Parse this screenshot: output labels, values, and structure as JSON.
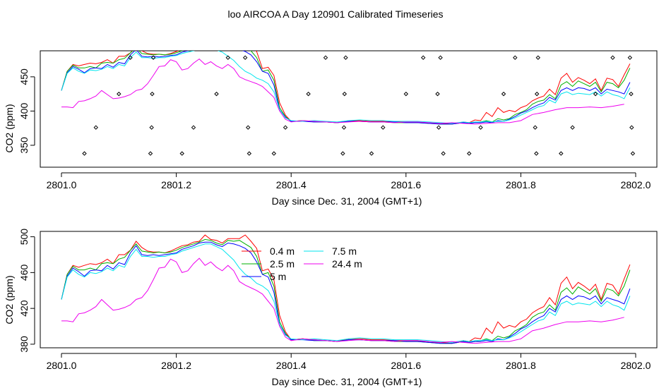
{
  "title": "loo AIRCOA A  Day 120901  Calibrated Timeseries",
  "colors": {
    "0.4 m": "#ff0000",
    "2.5 m": "#00b000",
    "5 m": "#0000ff",
    "7.5 m": "#00e5ee",
    "24.4 m": "#ee00ee"
  },
  "chart_data": [
    {
      "type": "line",
      "xlabel": "Day since Dec. 31, 2004 (GMT+1)",
      "ylabel": "CO2 (ppm)",
      "xlim": [
        2801.0,
        2802.0
      ],
      "ylim": [
        318,
        488
      ],
      "xticks": [
        "2801.0",
        "2801.2",
        "2801.4",
        "2801.6",
        "2801.8",
        "2802.0"
      ],
      "yticks": [
        "350",
        "400",
        "450"
      ],
      "ytick_values": [
        350,
        400,
        450
      ],
      "markers": [
        {
          "x": 2801.04,
          "y": 338
        },
        {
          "x": 2801.06,
          "y": 376
        },
        {
          "x": 2801.1,
          "y": 425
        },
        {
          "x": 2801.12,
          "y": 478
        },
        {
          "x": 2801.155,
          "y": 338
        },
        {
          "x": 2801.157,
          "y": 376
        },
        {
          "x": 2801.158,
          "y": 425
        },
        {
          "x": 2801.16,
          "y": 478
        },
        {
          "x": 2801.21,
          "y": 338
        },
        {
          "x": 2801.23,
          "y": 376
        },
        {
          "x": 2801.27,
          "y": 425
        },
        {
          "x": 2801.29,
          "y": 478
        },
        {
          "x": 2801.32,
          "y": 478
        },
        {
          "x": 2801.325,
          "y": 376
        },
        {
          "x": 2801.327,
          "y": 338
        },
        {
          "x": 2801.37,
          "y": 338
        },
        {
          "x": 2801.39,
          "y": 376
        },
        {
          "x": 2801.43,
          "y": 425
        },
        {
          "x": 2801.46,
          "y": 478
        },
        {
          "x": 2801.49,
          "y": 338
        },
        {
          "x": 2801.492,
          "y": 376
        },
        {
          "x": 2801.493,
          "y": 425
        },
        {
          "x": 2801.495,
          "y": 478
        },
        {
          "x": 2801.54,
          "y": 338
        },
        {
          "x": 2801.56,
          "y": 376
        },
        {
          "x": 2801.6,
          "y": 425
        },
        {
          "x": 2801.63,
          "y": 478
        },
        {
          "x": 2801.655,
          "y": 425
        },
        {
          "x": 2801.657,
          "y": 376
        },
        {
          "x": 2801.66,
          "y": 478
        },
        {
          "x": 2801.665,
          "y": 338
        },
        {
          "x": 2801.71,
          "y": 338
        },
        {
          "x": 2801.73,
          "y": 376
        },
        {
          "x": 2801.77,
          "y": 425
        },
        {
          "x": 2801.79,
          "y": 478
        },
        {
          "x": 2801.825,
          "y": 376
        },
        {
          "x": 2801.827,
          "y": 338
        },
        {
          "x": 2801.828,
          "y": 425
        },
        {
          "x": 2801.83,
          "y": 478
        },
        {
          "x": 2801.87,
          "y": 338
        },
        {
          "x": 2801.89,
          "y": 376
        },
        {
          "x": 2801.93,
          "y": 425
        },
        {
          "x": 2801.96,
          "y": 478
        },
        {
          "x": 2801.99,
          "y": 478
        },
        {
          "x": 2801.992,
          "y": 425
        },
        {
          "x": 2801.993,
          "y": 376
        },
        {
          "x": 2801.995,
          "y": 338
        }
      ]
    },
    {
      "type": "line",
      "xlabel": "Day since Dec. 31, 2004 (GMT+1)",
      "ylabel": "CO2 (ppm)",
      "xlim": [
        2801.0,
        2802.0
      ],
      "ylim": [
        376,
        506
      ],
      "xticks": [
        "2801.0",
        "2801.2",
        "2801.4",
        "2801.6",
        "2801.8",
        "2802.0"
      ],
      "yticks": [
        "380",
        "420",
        "460",
        "500"
      ],
      "ytick_values": [
        380,
        420,
        460,
        500
      ],
      "legend": [
        "0.4 m",
        "2.5 m",
        "5 m",
        "7.5 m",
        "24.4 m"
      ]
    }
  ],
  "series": [
    {
      "name": "0.4 m",
      "x": [
        2801.0,
        2801.01,
        2801.02,
        2801.03,
        2801.04,
        2801.05,
        2801.06,
        2801.07,
        2801.08,
        2801.09,
        2801.1,
        2801.11,
        2801.12,
        2801.13,
        2801.14,
        2801.15,
        2801.16,
        2801.17,
        2801.18,
        2801.19,
        2801.2,
        2801.21,
        2801.22,
        2801.23,
        2801.24,
        2801.25,
        2801.26,
        2801.27,
        2801.28,
        2801.29,
        2801.3,
        2801.31,
        2801.32,
        2801.33,
        2801.34,
        2801.35,
        2801.36,
        2801.37,
        2801.38,
        2801.39,
        2801.4,
        2801.42,
        2801.44,
        2801.46,
        2801.48,
        2801.5,
        2801.52,
        2801.54,
        2801.56,
        2801.58,
        2801.6,
        2801.62,
        2801.64,
        2801.66,
        2801.68,
        2801.7,
        2801.71,
        2801.72,
        2801.73,
        2801.74,
        2801.75,
        2801.76,
        2801.77,
        2801.78,
        2801.79,
        2801.8,
        2801.81,
        2801.82,
        2801.83,
        2801.84,
        2801.85,
        2801.86,
        2801.87,
        2801.88,
        2801.89,
        2801.9,
        2801.91,
        2801.92,
        2801.93,
        2801.94,
        2801.95,
        2801.96,
        2801.97,
        2801.98,
        2801.99
      ],
      "y": [
        430,
        458,
        468,
        466,
        468,
        470,
        469,
        471,
        475,
        470,
        480,
        480,
        485,
        495,
        488,
        484,
        483,
        483,
        482,
        484,
        487,
        490,
        491,
        494,
        495,
        502,
        497,
        496,
        493,
        498,
        498,
        498,
        502,
        495,
        487,
        462,
        464,
        452,
        412,
        394,
        385,
        386,
        385,
        384,
        383,
        386,
        386,
        385,
        385,
        384,
        384,
        384,
        382,
        382,
        381,
        384,
        383,
        387,
        386,
        398,
        392,
        405,
        398,
        401,
        399,
        405,
        408,
        415,
        419,
        422,
        432,
        424,
        448,
        455,
        442,
        449,
        445,
        440,
        447,
        430,
        448,
        446,
        436,
        453,
        469
      ]
    },
    {
      "name": "2.5 m",
      "x": [
        2801.0,
        2801.01,
        2801.02,
        2801.03,
        2801.04,
        2801.05,
        2801.06,
        2801.07,
        2801.08,
        2801.09,
        2801.1,
        2801.11,
        2801.12,
        2801.13,
        2801.14,
        2801.15,
        2801.16,
        2801.17,
        2801.18,
        2801.19,
        2801.2,
        2801.21,
        2801.22,
        2801.23,
        2801.24,
        2801.25,
        2801.26,
        2801.27,
        2801.28,
        2801.29,
        2801.3,
        2801.31,
        2801.32,
        2801.33,
        2801.34,
        2801.35,
        2801.36,
        2801.37,
        2801.38,
        2801.39,
        2801.4,
        2801.42,
        2801.44,
        2801.46,
        2801.48,
        2801.5,
        2801.52,
        2801.54,
        2801.56,
        2801.58,
        2801.6,
        2801.62,
        2801.64,
        2801.66,
        2801.68,
        2801.7,
        2801.71,
        2801.72,
        2801.73,
        2801.74,
        2801.75,
        2801.76,
        2801.77,
        2801.78,
        2801.79,
        2801.8,
        2801.81,
        2801.82,
        2801.83,
        2801.84,
        2801.85,
        2801.86,
        2801.87,
        2801.88,
        2801.89,
        2801.9,
        2801.91,
        2801.92,
        2801.93,
        2801.94,
        2801.95,
        2801.96,
        2801.97,
        2801.98,
        2801.99
      ],
      "y": [
        430,
        458,
        467,
        463,
        463,
        465,
        463,
        470,
        471,
        470,
        475,
        477,
        485,
        492,
        484,
        483,
        482,
        483,
        482,
        483,
        485,
        488,
        490,
        492,
        494,
        497,
        496,
        493,
        491,
        496,
        495,
        496,
        492,
        488,
        478,
        458,
        460,
        445,
        405,
        392,
        385,
        386,
        384,
        384,
        383,
        385,
        385,
        384,
        384,
        383,
        383,
        383,
        382,
        381,
        381,
        383,
        382,
        383,
        384,
        386,
        384,
        389,
        387,
        389,
        395,
        398,
        402,
        410,
        414,
        416,
        424,
        418,
        438,
        443,
        436,
        444,
        440,
        436,
        442,
        428,
        442,
        440,
        434,
        445,
        463
      ]
    },
    {
      "name": "5 m",
      "x": [
        2801.0,
        2801.01,
        2801.02,
        2801.03,
        2801.04,
        2801.05,
        2801.06,
        2801.07,
        2801.08,
        2801.09,
        2801.1,
        2801.11,
        2801.12,
        2801.13,
        2801.14,
        2801.15,
        2801.16,
        2801.17,
        2801.18,
        2801.19,
        2801.2,
        2801.21,
        2801.22,
        2801.23,
        2801.24,
        2801.25,
        2801.26,
        2801.27,
        2801.28,
        2801.29,
        2801.3,
        2801.31,
        2801.32,
        2801.33,
        2801.34,
        2801.35,
        2801.36,
        2801.37,
        2801.38,
        2801.39,
        2801.4,
        2801.42,
        2801.44,
        2801.46,
        2801.48,
        2801.5,
        2801.52,
        2801.54,
        2801.56,
        2801.58,
        2801.6,
        2801.62,
        2801.64,
        2801.66,
        2801.68,
        2801.7,
        2801.71,
        2801.72,
        2801.73,
        2801.74,
        2801.75,
        2801.76,
        2801.77,
        2801.78,
        2801.79,
        2801.8,
        2801.81,
        2801.82,
        2801.83,
        2801.84,
        2801.85,
        2801.86,
        2801.87,
        2801.88,
        2801.89,
        2801.9,
        2801.91,
        2801.92,
        2801.93,
        2801.94,
        2801.95,
        2801.96,
        2801.97,
        2801.98,
        2801.99
      ],
      "y": [
        430,
        456,
        465,
        461,
        456,
        462,
        463,
        462,
        468,
        464,
        471,
        469,
        482,
        490,
        480,
        479,
        480,
        479,
        480,
        481,
        482,
        486,
        488,
        490,
        493,
        494,
        494,
        491,
        489,
        493,
        492,
        490,
        487,
        482,
        472,
        458,
        455,
        438,
        402,
        391,
        385,
        385,
        384,
        384,
        383,
        385,
        385,
        384,
        384,
        384,
        383,
        383,
        382,
        381,
        381,
        383,
        382,
        383,
        383,
        384,
        383,
        386,
        385,
        388,
        392,
        397,
        400,
        405,
        409,
        412,
        420,
        416,
        430,
        434,
        430,
        434,
        433,
        430,
        434,
        425,
        432,
        430,
        428,
        425,
        442
      ]
    },
    {
      "name": "7.5 m",
      "x": [
        2801.0,
        2801.01,
        2801.02,
        2801.03,
        2801.04,
        2801.05,
        2801.06,
        2801.07,
        2801.08,
        2801.09,
        2801.1,
        2801.11,
        2801.12,
        2801.13,
        2801.14,
        2801.15,
        2801.16,
        2801.17,
        2801.18,
        2801.19,
        2801.2,
        2801.21,
        2801.22,
        2801.23,
        2801.24,
        2801.25,
        2801.26,
        2801.27,
        2801.28,
        2801.29,
        2801.3,
        2801.31,
        2801.32,
        2801.33,
        2801.34,
        2801.35,
        2801.36,
        2801.37,
        2801.38,
        2801.39,
        2801.4,
        2801.42,
        2801.44,
        2801.46,
        2801.48,
        2801.5,
        2801.52,
        2801.54,
        2801.56,
        2801.58,
        2801.6,
        2801.62,
        2801.64,
        2801.66,
        2801.68,
        2801.7,
        2801.71,
        2801.72,
        2801.73,
        2801.74,
        2801.75,
        2801.76,
        2801.77,
        2801.78,
        2801.79,
        2801.8,
        2801.81,
        2801.82,
        2801.83,
        2801.84,
        2801.85,
        2801.86,
        2801.87,
        2801.88,
        2801.89,
        2801.9,
        2801.91,
        2801.92,
        2801.93,
        2801.94,
        2801.95,
        2801.96,
        2801.97,
        2801.98,
        2801.99
      ],
      "y": [
        430,
        455,
        463,
        458,
        455,
        460,
        459,
        461,
        465,
        462,
        468,
        466,
        478,
        486,
        478,
        478,
        477,
        478,
        478,
        480,
        481,
        484,
        486,
        488,
        490,
        492,
        492,
        489,
        486,
        480,
        474,
        465,
        458,
        454,
        448,
        445,
        440,
        428,
        402,
        390,
        386,
        385,
        386,
        385,
        384,
        386,
        387,
        386,
        386,
        385,
        385,
        385,
        384,
        383,
        382,
        384,
        383,
        384,
        384,
        385,
        384,
        385,
        385,
        387,
        390,
        394,
        398,
        402,
        406,
        408,
        416,
        412,
        425,
        428,
        424,
        426,
        425,
        424,
        428,
        422,
        428,
        424,
        422,
        418,
        434
      ]
    },
    {
      "name": "24.4 m",
      "x": [
        2801.0,
        2801.01,
        2801.02,
        2801.03,
        2801.04,
        2801.05,
        2801.06,
        2801.07,
        2801.08,
        2801.09,
        2801.1,
        2801.11,
        2801.12,
        2801.13,
        2801.14,
        2801.15,
        2801.16,
        2801.17,
        2801.18,
        2801.19,
        2801.2,
        2801.21,
        2801.22,
        2801.23,
        2801.24,
        2801.25,
        2801.26,
        2801.27,
        2801.28,
        2801.29,
        2801.3,
        2801.31,
        2801.32,
        2801.33,
        2801.34,
        2801.35,
        2801.36,
        2801.37,
        2801.38,
        2801.39,
        2801.4,
        2801.42,
        2801.44,
        2801.46,
        2801.48,
        2801.5,
        2801.52,
        2801.54,
        2801.56,
        2801.58,
        2801.6,
        2801.62,
        2801.64,
        2801.66,
        2801.68,
        2801.7,
        2801.72,
        2801.74,
        2801.76,
        2801.78,
        2801.8,
        2801.82,
        2801.84,
        2801.86,
        2801.88,
        2801.9,
        2801.92,
        2801.94,
        2801.96,
        2801.98
      ],
      "y": [
        406,
        406,
        405,
        414,
        415,
        418,
        422,
        430,
        424,
        418,
        419,
        421,
        424,
        430,
        432,
        440,
        452,
        465,
        466,
        475,
        472,
        460,
        462,
        470,
        476,
        468,
        472,
        466,
        462,
        468,
        462,
        450,
        446,
        443,
        440,
        436,
        428,
        420,
        400,
        388,
        384,
        386,
        385,
        384,
        383,
        384,
        385,
        384,
        384,
        383,
        384,
        384,
        383,
        382,
        383,
        382,
        381,
        382,
        383,
        383,
        386,
        395,
        398,
        402,
        405,
        405,
        406,
        405,
        407,
        410
      ]
    }
  ]
}
